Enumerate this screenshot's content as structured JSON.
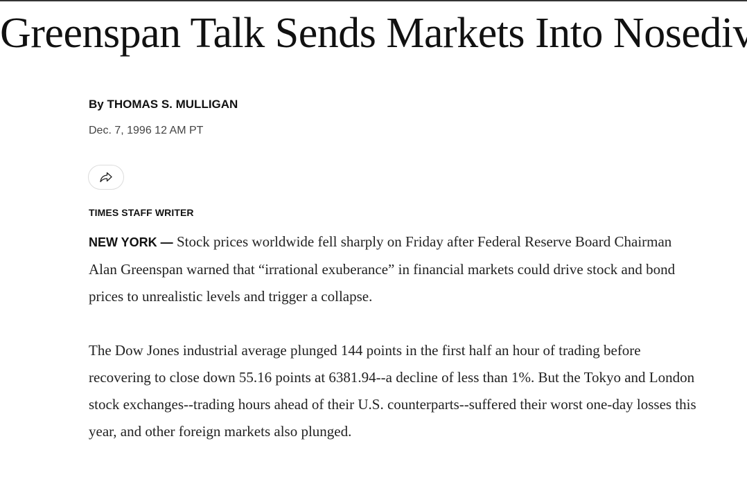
{
  "article": {
    "headline": "Greenspan Talk Sends Markets Into Nosedive",
    "byline": "By THOMAS S. MULLIGAN",
    "date": "Dec. 7, 1996 12 AM PT",
    "share_icon": "share-arrow-icon",
    "staff_label": "TIMES STAFF WRITER",
    "dateline_city": "NEW YORK —",
    "paragraphs": [
      " Stock prices worldwide fell sharply on Friday after Federal Reserve Board Chairman Alan Greenspan warned that “irrational exuberance” in financial markets could drive stock and bond prices to unrealistic levels and trigger a collapse.",
      "The Dow Jones industrial average plunged 144 points in the first half an hour of trading before recovering to close down 55.16 points at 6381.94--a decline of less than 1%. But the Tokyo and London stock exchanges--trading hours ahead of their U.S. counterparts--suffered their worst one-day losses this year, and other foreign markets also plunged."
    ]
  }
}
